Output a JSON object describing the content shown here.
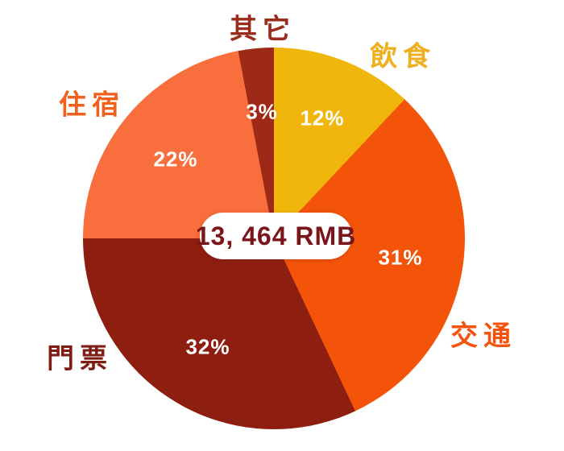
{
  "chart_data": {
    "type": "pie",
    "title": "",
    "center_label": "13, 464 RMB",
    "direction": "clockwise",
    "start_angle_deg": 0,
    "background": "#FFFFFF",
    "percent_text_color": "#FFFFFF",
    "center_text_color": "#7A151A",
    "slices": [
      {
        "label": "飲食",
        "value_pct": 12,
        "percent_label": "12%",
        "color": "#F1B60C",
        "label_color": "#EFAF1E"
      },
      {
        "label": "交通",
        "value_pct": 31,
        "percent_label": "31%",
        "color": "#F4540A",
        "label_color": "#F4530E"
      },
      {
        "label": "門票",
        "value_pct": 32,
        "percent_label": "32%",
        "color": "#8E1F10",
        "label_color": "#7E1D14"
      },
      {
        "label": "住宿",
        "value_pct": 22,
        "percent_label": "22%",
        "color": "#F86E3C",
        "label_color": "#F2601E"
      },
      {
        "label": "其它",
        "value_pct": 3,
        "percent_label": "3%",
        "color": "#9E2917",
        "label_color": "#9B2C1C"
      }
    ]
  }
}
